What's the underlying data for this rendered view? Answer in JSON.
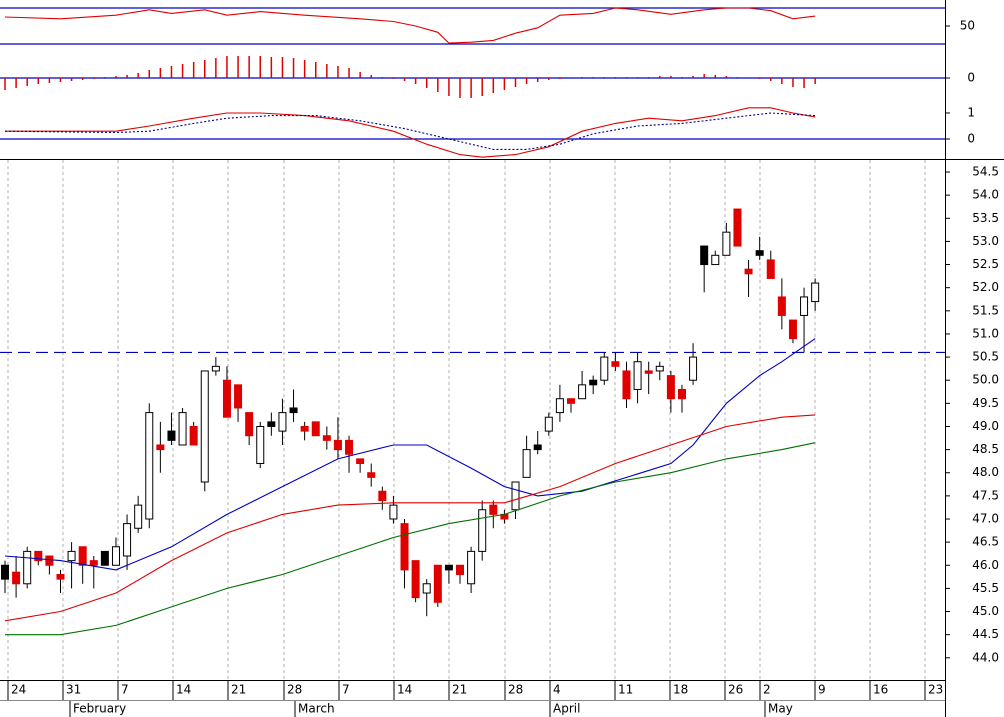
{
  "chart_data": [
    {
      "type": "line",
      "xlim": [
        -0.45,
        84.7
      ],
      "ylim": [
        23.3,
        78.9
      ],
      "yticks": [
        50
      ],
      "reference_lines": [
        30,
        70
      ],
      "reference_color": "#0000c0",
      "series": [
        {
          "color": "#e00000",
          "dash": false,
          "x": [
            0,
            5,
            10,
            13,
            15,
            18,
            20,
            23,
            27,
            32,
            35,
            37,
            39,
            40,
            42,
            44,
            46,
            48,
            50,
            53,
            55,
            57,
            60,
            63,
            65,
            67,
            69,
            71,
            73
          ],
          "values": [
            60,
            58,
            62,
            68,
            64,
            68,
            62,
            66,
            62,
            58,
            55,
            50,
            43,
            31,
            32,
            34,
            42,
            48,
            62,
            64,
            70,
            68,
            63,
            68,
            70,
            70,
            67,
            58,
            61
          ]
        }
      ]
    },
    {
      "type": "bar",
      "xlim": [
        -0.45,
        84.7
      ],
      "ylim": [
        -22,
        28
      ],
      "yticks": [
        0
      ],
      "color": "#e00000",
      "reference_lines": [
        0
      ],
      "reference_color": "#0000c0",
      "values": [
        -12,
        -10,
        -8,
        -6,
        -5,
        -4,
        -3,
        -2,
        -1,
        1,
        2,
        3,
        5,
        8,
        10,
        12,
        14,
        16,
        18,
        20,
        22,
        22,
        22,
        22,
        21,
        21,
        20,
        18,
        16,
        14,
        12,
        10,
        6,
        3,
        1,
        -1,
        -3,
        -6,
        -10,
        -14,
        -18,
        -20,
        -20,
        -18,
        -15,
        -12,
        -9,
        -6,
        -4,
        -2,
        -1,
        0,
        1,
        1,
        1,
        1,
        1,
        1,
        1,
        2,
        2,
        1,
        2,
        4,
        3,
        2,
        1,
        0,
        -1,
        -3,
        -6,
        -9,
        -10,
        -6
      ]
    },
    {
      "type": "line",
      "xlim": [
        -0.45,
        84.7
      ],
      "ylim": [
        -0.77,
        1.5
      ],
      "yticks": [
        1,
        0
      ],
      "reference_lines": [
        0
      ],
      "reference_color": "#0000c0",
      "series": [
        {
          "color": "#e00000",
          "dash": false,
          "x": [
            0,
            10,
            13,
            17,
            20,
            23,
            27,
            31,
            35,
            38,
            41,
            43,
            46,
            49,
            52,
            55,
            58,
            61,
            64,
            67,
            69,
            71,
            73
          ],
          "values": [
            0.3,
            0.3,
            0.5,
            0.8,
            1.0,
            1.0,
            0.9,
            0.7,
            0.3,
            -0.2,
            -0.6,
            -0.7,
            -0.6,
            -0.3,
            0.3,
            0.6,
            0.8,
            0.7,
            0.9,
            1.2,
            1.2,
            1.0,
            0.85
          ]
        },
        {
          "color": "#00008b",
          "dash": true,
          "x": [
            0,
            10,
            13,
            17,
            20,
            24,
            28,
            32,
            36,
            40,
            44,
            47,
            50,
            53,
            57,
            61,
            65,
            69,
            73
          ],
          "values": [
            0.3,
            0.25,
            0.3,
            0.6,
            0.8,
            0.9,
            0.9,
            0.7,
            0.4,
            0,
            -0.4,
            -0.4,
            -0.2,
            0.2,
            0.5,
            0.6,
            0.8,
            1.0,
            0.9
          ]
        }
      ]
    },
    {
      "type": "candlestick",
      "xlim": [
        -0.45,
        84.7
      ],
      "ylim": [
        43.52,
        54.76
      ],
      "yticks": [
        {
          "value": 44,
          "label": "44.0"
        },
        44.5,
        {
          "value": 45,
          "label": "45.0"
        },
        45.5,
        {
          "value": 46,
          "label": "46.0"
        },
        46.5,
        {
          "value": 47,
          "label": "47.0"
        },
        47.5,
        {
          "value": 48,
          "label": "48.0"
        },
        48.5,
        {
          "value": 49,
          "label": "49.0"
        },
        49.5,
        {
          "value": 50,
          "label": "50.0"
        },
        50.5,
        {
          "value": 51,
          "label": "51.0"
        },
        51.5,
        {
          "value": 52,
          "label": "52.0"
        },
        52.5,
        {
          "value": 53,
          "label": "53.0"
        },
        53.5,
        {
          "value": 54,
          "label": "54.0"
        },
        54.5
      ],
      "reference_lines": [
        50.6
      ],
      "reference_color": "#0000c0",
      "reference_dash": true,
      "x_labels": [
        "24",
        "31",
        "7",
        "14",
        "21",
        "28",
        "7",
        "14",
        "21",
        "28",
        "4",
        "11",
        "18",
        "26",
        "2",
        "9",
        "16",
        "23"
      ],
      "months": [
        "February",
        "March",
        "April",
        "May"
      ],
      "candle_colors": {
        "up": "#ffffff",
        "down": "#e00000",
        "hold": "#000000"
      },
      "open": [
        46.0,
        45.85,
        45.6,
        46.3,
        46.2,
        45.8,
        46.1,
        46.4,
        46.1,
        46.3,
        46.0,
        46.2,
        46.8,
        47.0,
        48.6,
        48.9,
        48.6,
        49.0,
        47.8,
        50.2,
        50.0,
        49.9,
        49.3,
        48.2,
        49.1,
        48.9,
        49.4,
        49.0,
        49.1,
        48.8,
        48.7,
        48.7,
        48.3,
        48.0,
        47.6,
        47.0,
        46.9,
        46.1,
        45.4,
        46.0,
        46.0,
        46.0,
        45.6,
        46.3,
        47.3,
        47.1,
        47.2,
        47.9,
        48.6,
        48.9,
        49.3,
        49.6,
        49.6,
        50.0,
        50.0,
        50.4,
        50.2,
        49.8,
        50.2,
        50.2,
        50.1,
        49.8,
        50.0,
        52.9,
        52.5,
        52.7,
        53.7,
        52.4,
        52.8,
        52.6,
        51.8,
        51.3,
        51.4,
        51.7
      ],
      "high": [
        46.1,
        46.2,
        46.4,
        46.3,
        46.2,
        45.9,
        46.5,
        46.4,
        46.2,
        46.3,
        46.6,
        47.1,
        47.5,
        49.5,
        49.1,
        49.3,
        49.4,
        49.1,
        50.2,
        50.5,
        50.3,
        49.9,
        49.3,
        49.1,
        49.3,
        49.6,
        49.8,
        49.1,
        49.1,
        49.0,
        49.2,
        48.8,
        48.3,
        48.2,
        47.7,
        47.5,
        47.0,
        46.1,
        45.7,
        46.0,
        46.0,
        46.0,
        46.4,
        47.4,
        47.4,
        47.2,
        47.8,
        48.8,
        48.9,
        49.3,
        49.9,
        49.6,
        50.2,
        50.1,
        50.6,
        50.6,
        50.4,
        50.6,
        50.4,
        50.4,
        50.2,
        49.9,
        50.8,
        52.9,
        52.8,
        53.4,
        53.7,
        52.6,
        53.1,
        52.8,
        52.2,
        51.3,
        52.0,
        52.2
      ],
      "low": [
        45.4,
        45.3,
        45.5,
        46.0,
        45.8,
        45.4,
        45.5,
        45.6,
        45.5,
        46.0,
        46.0,
        45.9,
        46.7,
        46.8,
        48.0,
        48.6,
        48.6,
        48.6,
        47.6,
        50.1,
        49.2,
        49.1,
        48.6,
        48.1,
        48.8,
        48.6,
        49.1,
        48.7,
        48.8,
        48.5,
        48.3,
        48.0,
        48.0,
        47.7,
        47.2,
        46.9,
        45.5,
        45.2,
        44.9,
        45.1,
        45.6,
        45.6,
        45.4,
        46.1,
        46.8,
        46.9,
        47.0,
        47.9,
        48.4,
        48.8,
        49.1,
        49.3,
        49.6,
        49.7,
        49.9,
        50.2,
        49.4,
        49.5,
        49.7,
        50.0,
        49.3,
        49.3,
        49.9,
        51.9,
        52.5,
        52.7,
        52.9,
        51.8,
        52.6,
        52.2,
        51.1,
        50.8,
        50.6,
        51.5
      ],
      "close": [
        45.7,
        45.6,
        46.3,
        46.1,
        46.0,
        45.7,
        46.3,
        46.0,
        46.0,
        46.0,
        46.4,
        46.9,
        47.3,
        49.3,
        48.5,
        48.7,
        49.3,
        48.6,
        50.2,
        50.3,
        49.2,
        49.4,
        48.8,
        49.0,
        49.0,
        49.3,
        49.3,
        48.9,
        48.8,
        48.7,
        48.5,
        48.4,
        48.2,
        47.9,
        47.4,
        47.3,
        45.9,
        45.3,
        45.6,
        45.2,
        45.9,
        45.8,
        46.3,
        47.2,
        47.1,
        47.0,
        47.8,
        48.5,
        48.5,
        49.2,
        49.6,
        49.5,
        49.9,
        49.9,
        50.5,
        50.3,
        49.6,
        50.4,
        50.15,
        50.3,
        49.6,
        49.6,
        50.5,
        52.5,
        52.7,
        53.2,
        52.9,
        52.3,
        52.7,
        52.2,
        51.4,
        50.9,
        51.8,
        52.1
      ],
      "fills": [
        "hold",
        "down",
        "up",
        "down",
        "down",
        "down",
        "up",
        "down",
        "down",
        "hold",
        "up",
        "up",
        "up",
        "up",
        "down",
        "hold",
        "up",
        "down",
        "up",
        "up",
        "down",
        "down",
        "down",
        "up",
        "hold",
        "up",
        "hold",
        "down",
        "down",
        "down",
        "down",
        "down",
        "down",
        "down",
        "down",
        "up",
        "down",
        "down",
        "up",
        "down",
        "hold",
        "down",
        "up",
        "up",
        "down",
        "down",
        "up",
        "up",
        "hold",
        "up",
        "up",
        "down",
        "up",
        "hold",
        "up",
        "down",
        "down",
        "up",
        "down",
        "up",
        "down",
        "down",
        "up",
        "hold",
        "up",
        "up",
        "down",
        "down",
        "hold",
        "down",
        "down",
        "down",
        "up",
        "up"
      ],
      "series": [
        {
          "color": "#0000c0",
          "dash": false,
          "x": [
            0,
            5,
            10,
            15,
            20,
            25,
            30,
            35,
            38,
            42,
            45,
            48,
            52,
            56,
            60,
            62,
            65,
            68,
            70,
            73
          ],
          "values": [
            46.2,
            46.1,
            45.9,
            46.4,
            47.1,
            47.7,
            48.3,
            48.6,
            48.6,
            48.1,
            47.7,
            47.5,
            47.6,
            47.9,
            48.2,
            48.6,
            49.5,
            50.1,
            50.4,
            50.9
          ]
        },
        {
          "color": "#e00000",
          "dash": false,
          "x": [
            0,
            5,
            10,
            15,
            20,
            25,
            30,
            35,
            40,
            45,
            50,
            55,
            60,
            65,
            70,
            73
          ],
          "values": [
            44.8,
            45.0,
            45.4,
            46.1,
            46.7,
            47.1,
            47.3,
            47.35,
            47.35,
            47.35,
            47.7,
            48.2,
            48.6,
            49.0,
            49.2,
            49.25
          ]
        },
        {
          "color": "#007000",
          "dash": false,
          "x": [
            0,
            5,
            10,
            15,
            20,
            25,
            30,
            35,
            40,
            45,
            50,
            55,
            60,
            65,
            70,
            73
          ],
          "values": [
            44.5,
            44.5,
            44.7,
            45.1,
            45.5,
            45.8,
            46.2,
            46.6,
            46.9,
            47.1,
            47.5,
            47.8,
            48.0,
            48.3,
            48.5,
            48.65
          ]
        }
      ]
    }
  ]
}
